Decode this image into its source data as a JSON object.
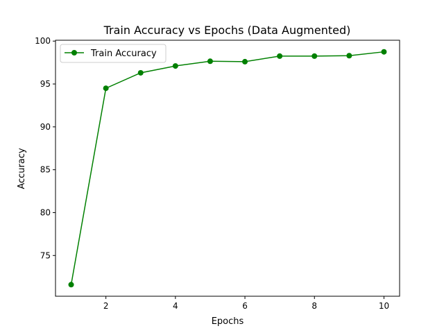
{
  "chart_data": {
    "type": "line",
    "title": "Train Accuracy vs Epochs (Data Augmented)",
    "xlabel": "Epochs",
    "ylabel": "Accuracy",
    "x": [
      1,
      2,
      3,
      4,
      5,
      6,
      7,
      8,
      9,
      10
    ],
    "series": [
      {
        "name": "Train Accuracy",
        "color": "#008000",
        "marker": "circle",
        "values": [
          71.6,
          94.5,
          96.3,
          97.1,
          97.65,
          97.6,
          98.25,
          98.25,
          98.3,
          98.75
        ]
      }
    ],
    "xlim": [
      0.55,
      10.45
    ],
    "ylim": [
      70.25,
      100.1
    ],
    "xticks": [
      2,
      4,
      6,
      8,
      10
    ],
    "xtick_labels": [
      "2",
      "4",
      "6",
      "8",
      "10"
    ],
    "yticks": [
      75,
      80,
      85,
      90,
      95,
      100
    ],
    "ytick_labels": [
      "75",
      "80",
      "85",
      "90",
      "95",
      "100"
    ],
    "grid": false,
    "legend_position": "top-left"
  }
}
